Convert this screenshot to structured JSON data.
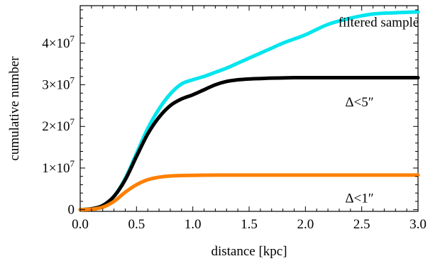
{
  "chart_data": {
    "type": "line",
    "xlabel": "distance [kpc]",
    "ylabel": "cumulative number",
    "xlim": [
      0,
      3
    ],
    "ylim": [
      -400000.0,
      49000000.0
    ],
    "grid": false,
    "x_ticks": [
      {
        "value": 0.0,
        "label": "0.0"
      },
      {
        "value": 0.5,
        "label": "0.5"
      },
      {
        "value": 1.0,
        "label": "1.0"
      },
      {
        "value": 1.5,
        "label": "1.5"
      },
      {
        "value": 2.0,
        "label": "2.0"
      },
      {
        "value": 2.5,
        "label": "2.5"
      },
      {
        "value": 3.0,
        "label": "3.0"
      }
    ],
    "y_ticks": [
      {
        "value": 0,
        "mantissa": "0",
        "exp": ""
      },
      {
        "value": 10000000.0,
        "mantissa": "1×10",
        "exp": "7"
      },
      {
        "value": 20000000.0,
        "mantissa": "2×10",
        "exp": "7"
      },
      {
        "value": 30000000.0,
        "mantissa": "3×10",
        "exp": "7"
      },
      {
        "value": 40000000.0,
        "mantissa": "4×10",
        "exp": "7"
      }
    ],
    "x": [
      0,
      0.1,
      0.2,
      0.3,
      0.4,
      0.5,
      0.6,
      0.7,
      0.8,
      0.9,
      1.0,
      1.1,
      1.2,
      1.3,
      1.4,
      1.5,
      1.6,
      1.7,
      1.8,
      1.9,
      2.0,
      2.2,
      2.4,
      2.6,
      2.8,
      3.0
    ],
    "series": [
      {
        "name": "filtered sample",
        "color": "#00e5ee",
        "values": [
          0,
          200000.0,
          1000000.0,
          3200000.0,
          7500000.0,
          13500000.0,
          19500000.0,
          24200000.0,
          27800000.0,
          30200000.0,
          31200000.0,
          32000000.0,
          33000000.0,
          34000000.0,
          35200000.0,
          36400000.0,
          37600000.0,
          38800000.0,
          40000000.0,
          41000000.0,
          42000000.0,
          44500000.0,
          46000000.0,
          47000000.0,
          47300000.0,
          47500000.0
        ]
      },
      {
        "name": "Δ<5″",
        "color": "#000000",
        "values": [
          0,
          200000.0,
          1000000.0,
          3200000.0,
          7200000.0,
          12800000.0,
          18200000.0,
          22200000.0,
          25000000.0,
          26600000.0,
          27600000.0,
          28800000.0,
          30000000.0,
          30800000.0,
          31200000.0,
          31400000.0,
          31500000.0,
          31600000.0,
          31650000.0,
          31700000.0,
          31700000.0,
          31700000.0,
          31700000.0,
          31700000.0,
          31700000.0,
          31700000.0
        ]
      },
      {
        "name": "Δ<1″",
        "color": "#ff8000",
        "values": [
          0,
          100000.0,
          600000.0,
          2000000.0,
          4200000.0,
          6000000.0,
          7200000.0,
          7800000.0,
          8100000.0,
          8200000.0,
          8250000.0,
          8280000.0,
          8300000.0,
          8300000.0,
          8300000.0,
          8300000.0,
          8300000.0,
          8300000.0,
          8300000.0,
          8300000.0,
          8300000.0,
          8300000.0,
          8300000.0,
          8300000.0,
          8300000.0,
          8300000.0
        ]
      }
    ],
    "annotations": [
      {
        "series": 0,
        "text": "filtered sample",
        "at_x": 2.65,
        "at_y": 44000000.0
      },
      {
        "series": 1,
        "text": "Δ<5″",
        "at_x": 2.48,
        "at_y": 24800000.0
      },
      {
        "series": 2,
        "text": "Δ<1″",
        "at_x": 2.48,
        "at_y": 1700000.0
      }
    ]
  }
}
